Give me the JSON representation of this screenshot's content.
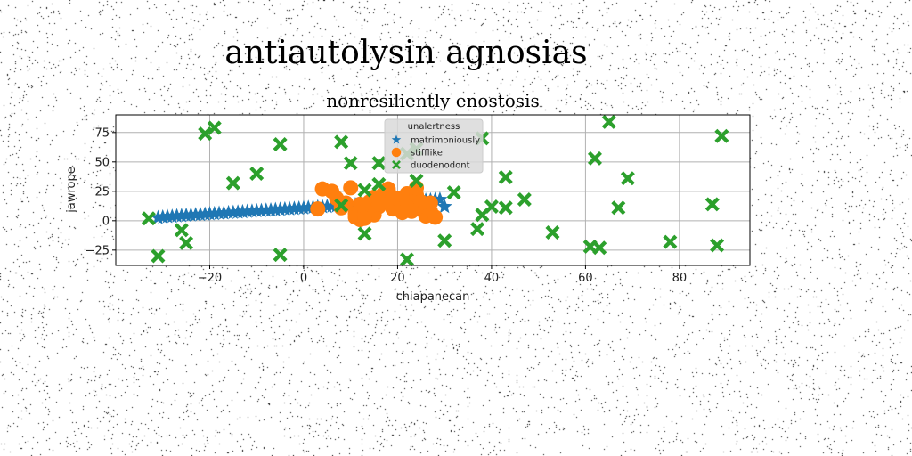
{
  "figure": {
    "suptitle": "antiautolysin agnosias"
  },
  "chart_data": {
    "type": "scatter",
    "title": "nonresiliently enostosis",
    "xlabel": "chiapanecan",
    "ylabel": "jawrope",
    "xlim": [
      -40,
      95
    ],
    "ylim": [
      -38,
      90
    ],
    "xticks": [
      -20,
      0,
      20,
      40,
      60,
      80
    ],
    "yticks": [
      -25,
      0,
      25,
      50,
      75
    ],
    "xtick_labels": [
      "−20",
      "0",
      "20",
      "40",
      "60",
      "80"
    ],
    "ytick_labels": [
      "−25",
      "0",
      "25",
      "50",
      "75"
    ],
    "grid": true,
    "legend": {
      "title": "unalertness",
      "placement": "top-center",
      "entries": [
        "matrimoniously",
        "stifflike",
        "duodenodont"
      ]
    },
    "series": [
      {
        "name": "matrimoniously",
        "marker": "star",
        "color": "#1f77b4",
        "x": [
          -31,
          -30,
          -29,
          -28,
          -27,
          -26,
          -25,
          -24,
          -23,
          -22,
          -21,
          -20,
          -19,
          -18,
          -17,
          -16,
          -15,
          -14,
          -13,
          -12,
          -11,
          -10,
          -9,
          -8,
          -7,
          -6,
          -5,
          -4,
          -3,
          -2,
          -1,
          0,
          1,
          2,
          3,
          4,
          5,
          6,
          7,
          8,
          9,
          10,
          11,
          12,
          13,
          14,
          15,
          16,
          17,
          18,
          19,
          20,
          21,
          22,
          23,
          24,
          25,
          26,
          27,
          28,
          29,
          30
        ],
        "y": [
          2.5,
          3.0,
          3.5,
          3.6,
          4.0,
          4.2,
          4.5,
          4.8,
          5.0,
          5.2,
          5.5,
          5.8,
          6.0,
          6.3,
          6.5,
          6.8,
          7.0,
          7.3,
          7.5,
          7.8,
          8.0,
          8.3,
          8.5,
          8.8,
          9.0,
          9.3,
          9.5,
          9.8,
          10.0,
          10.3,
          10.5,
          10.8,
          11.0,
          11.3,
          11.5,
          11.8,
          12.0,
          12.3,
          12.5,
          12.8,
          13.0,
          13.3,
          13.5,
          13.8,
          14.0,
          14.3,
          14.5,
          14.8,
          15.0,
          15.3,
          15.5,
          15.8,
          16.0,
          16.3,
          16.5,
          16.8,
          17.0,
          17.3,
          17.5,
          17.8,
          18.0,
          12.0
        ]
      },
      {
        "name": "stifflike",
        "marker": "circle",
        "color": "#ff7f0e",
        "x": [
          3,
          4,
          6,
          7,
          8,
          9,
          10,
          11,
          11,
          12,
          12,
          13,
          13,
          14,
          14,
          15,
          15,
          16,
          16,
          17,
          18,
          18,
          19,
          19,
          20,
          21,
          21,
          22,
          22,
          23,
          23,
          24,
          24,
          25,
          25,
          26,
          26,
          27,
          27,
          28,
          12,
          13
        ],
        "y": [
          10,
          27,
          25,
          19,
          11,
          15,
          28,
          6,
          3,
          10,
          14,
          3,
          8,
          11,
          16,
          20,
          5,
          12,
          14,
          23,
          17,
          27,
          10,
          20,
          19,
          16,
          7,
          17,
          23,
          13,
          8,
          22,
          28,
          10,
          16,
          4,
          12,
          8,
          15,
          3,
          1,
          2
        ]
      },
      {
        "name": "duodenodont",
        "marker": "x",
        "color": "#2ca02c",
        "x": [
          -33,
          -31,
          -26,
          -25,
          -21,
          -19,
          -15,
          -10,
          -5,
          -5,
          8,
          8,
          10,
          13,
          13,
          16,
          16,
          22,
          22,
          24,
          24,
          30,
          32,
          37,
          38,
          38,
          40,
          43,
          43,
          47,
          53,
          61,
          62,
          63,
          65,
          67,
          69,
          78,
          87,
          88,
          89
        ],
        "y": [
          2,
          -30,
          -8,
          -19,
          74,
          79,
          32,
          40,
          65,
          -29,
          67,
          13,
          49,
          26,
          -11,
          49,
          31,
          -33,
          57,
          61,
          34,
          -17,
          24,
          -7,
          70,
          5,
          12,
          37,
          11,
          18,
          -10,
          -22,
          53,
          -23,
          84,
          11,
          36,
          -18,
          14,
          -21,
          72
        ]
      }
    ]
  }
}
